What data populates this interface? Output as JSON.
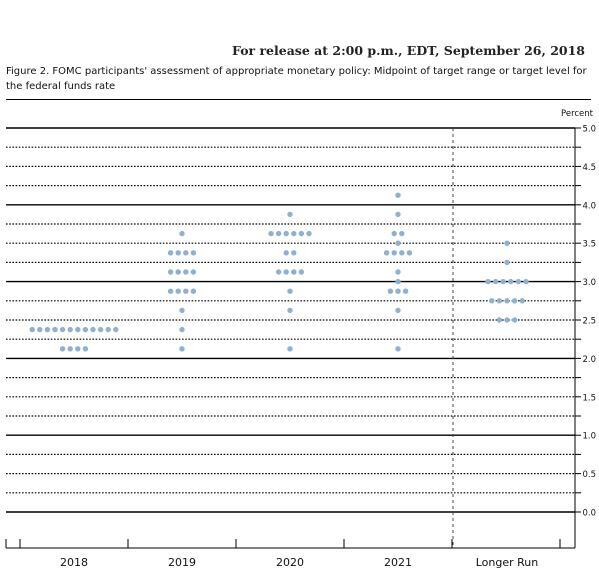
{
  "header": {
    "release": "For release at 2:00 p.m., EDT, September 26, 2018",
    "figure_title": "Figure 2. FOMC participants' assessment of appropriate monetary policy: Midpoint of target range or target level for the federal funds rate"
  },
  "chart_data": {
    "type": "scatter",
    "title": "Figure 2. FOMC participants' assessment of appropriate monetary policy: Midpoint of target range or target level for the federal funds rate",
    "ylabel": "Percent",
    "ylim": [
      0,
      5
    ],
    "yticks": [
      "5.0",
      "4.5",
      "4.0",
      "3.5",
      "3.0",
      "2.5",
      "2.0",
      "1.5",
      "1.0",
      "0.5",
      "0.0"
    ],
    "grid": true,
    "categories": [
      "2018",
      "2019",
      "2020",
      "2021",
      "Longer Run"
    ],
    "dot_color": "#8fb0cf",
    "dots": [
      {
        "category": "2018",
        "counts": [
          {
            "rate": 2.375,
            "count": 12
          },
          {
            "rate": 2.125,
            "count": 4
          }
        ]
      },
      {
        "category": "2019",
        "counts": [
          {
            "rate": 3.625,
            "count": 1
          },
          {
            "rate": 3.375,
            "count": 4
          },
          {
            "rate": 3.125,
            "count": 4
          },
          {
            "rate": 2.875,
            "count": 4
          },
          {
            "rate": 2.625,
            "count": 1
          },
          {
            "rate": 2.375,
            "count": 1
          },
          {
            "rate": 2.125,
            "count": 1
          }
        ]
      },
      {
        "category": "2020",
        "counts": [
          {
            "rate": 3.875,
            "count": 1
          },
          {
            "rate": 3.625,
            "count": 6
          },
          {
            "rate": 3.375,
            "count": 2
          },
          {
            "rate": 3.125,
            "count": 4
          },
          {
            "rate": 2.875,
            "count": 1
          },
          {
            "rate": 2.625,
            "count": 1
          },
          {
            "rate": 2.125,
            "count": 1
          }
        ]
      },
      {
        "category": "2021",
        "counts": [
          {
            "rate": 4.125,
            "count": 1
          },
          {
            "rate": 3.875,
            "count": 1
          },
          {
            "rate": 3.625,
            "count": 2
          },
          {
            "rate": 3.5,
            "count": 1
          },
          {
            "rate": 3.375,
            "count": 4
          },
          {
            "rate": 3.125,
            "count": 1
          },
          {
            "rate": 3.0,
            "count": 1
          },
          {
            "rate": 2.875,
            "count": 3
          },
          {
            "rate": 2.625,
            "count": 1
          },
          {
            "rate": 2.125,
            "count": 1
          }
        ]
      },
      {
        "category": "Longer Run",
        "counts": [
          {
            "rate": 3.5,
            "count": 1
          },
          {
            "rate": 3.25,
            "count": 1
          },
          {
            "rate": 3.0,
            "count": 6
          },
          {
            "rate": 2.75,
            "count": 5
          },
          {
            "rate": 2.5,
            "count": 3
          }
        ]
      }
    ]
  }
}
